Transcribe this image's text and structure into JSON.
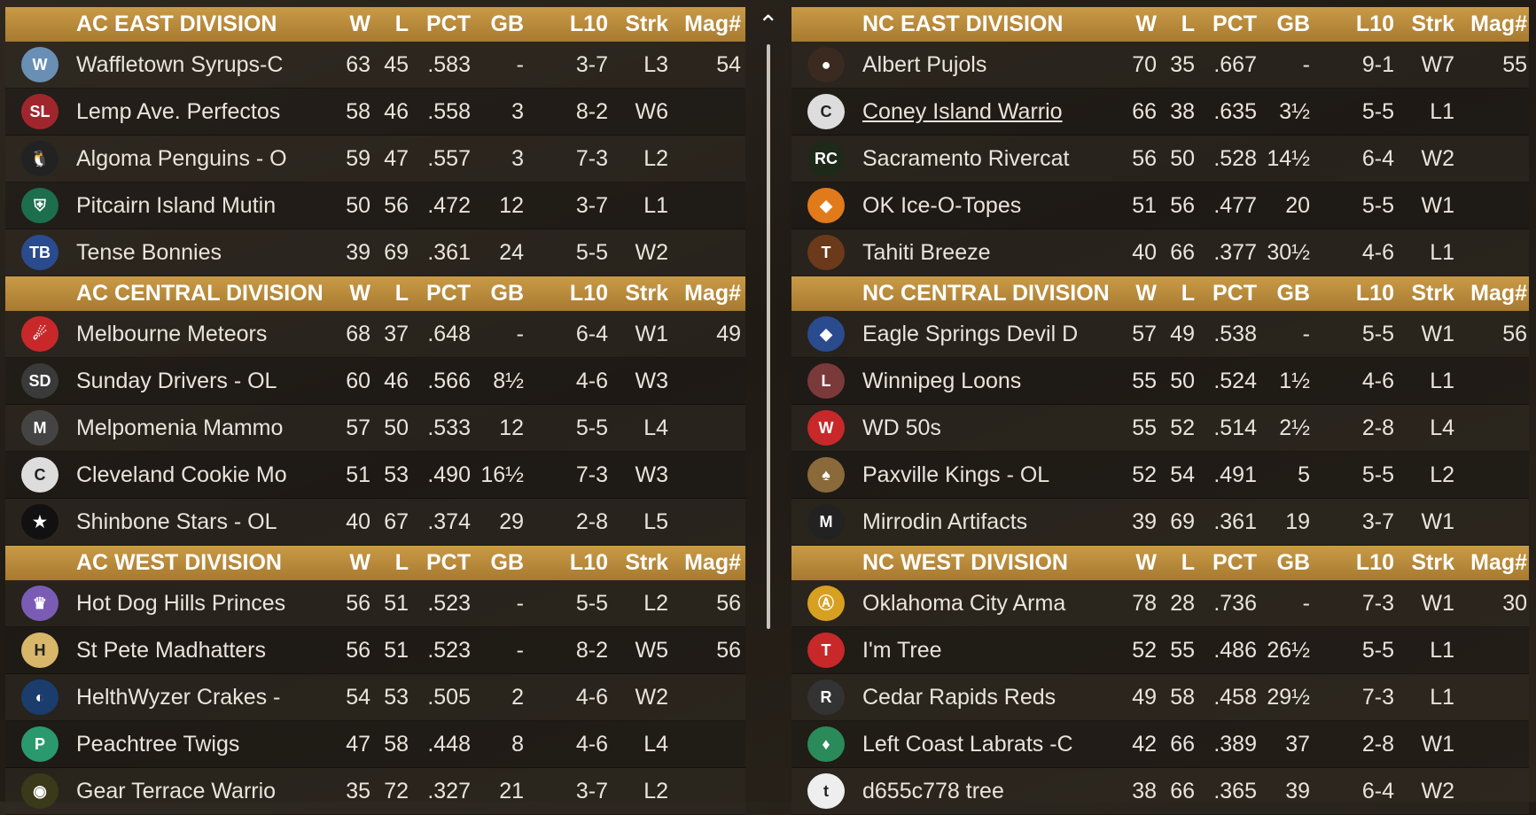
{
  "headers": {
    "w": "W",
    "l": "L",
    "pct": "PCT",
    "gb": "GB",
    "l10": "L10",
    "strk": "Strk",
    "mag": "Mag#"
  },
  "colors": {
    "header_gold": "#b88a3c",
    "row_dark": "#1e1a15",
    "text": "#e9e4dc"
  },
  "left_divisions": [
    {
      "title": "AC EAST DIVISION",
      "teams": [
        {
          "name": "Waffletown Syrups-C",
          "w": "63",
          "l": "45",
          "pct": ".583",
          "gb": "-",
          "l10": "3-7",
          "strk": "L3",
          "mag": "54",
          "logo": "waffle-logo-icon"
        },
        {
          "name": "Lemp Ave. Perfectos",
          "w": "58",
          "l": "46",
          "pct": ".558",
          "gb": "3",
          "l10": "8-2",
          "strk": "W6",
          "mag": "",
          "logo": "sl-monogram-icon"
        },
        {
          "name": "Algoma Penguins - O",
          "w": "59",
          "l": "47",
          "pct": ".557",
          "gb": "3",
          "l10": "7-3",
          "strk": "L2",
          "mag": "",
          "logo": "penguin-icon"
        },
        {
          "name": "Pitcairn Island Mutin",
          "w": "50",
          "l": "56",
          "pct": ".472",
          "gb": "12",
          "l10": "3-7",
          "strk": "L1",
          "mag": "",
          "logo": "shield-icon"
        },
        {
          "name": "Tense Bonnies",
          "w": "39",
          "l": "69",
          "pct": ".361",
          "gb": "24",
          "l10": "5-5",
          "strk": "W2",
          "mag": "",
          "logo": "wordmark-icon"
        }
      ]
    },
    {
      "title": "AC CENTRAL DIVISION",
      "teams": [
        {
          "name": "Melbourne Meteors",
          "w": "68",
          "l": "37",
          "pct": ".648",
          "gb": "-",
          "l10": "6-4",
          "strk": "W1",
          "mag": "49",
          "logo": "meteor-icon"
        },
        {
          "name": "Sunday Drivers - OL",
          "w": "60",
          "l": "46",
          "pct": ".566",
          "gb": "8½",
          "l10": "4-6",
          "strk": "W3",
          "mag": "",
          "logo": "sd-monogram-icon"
        },
        {
          "name": "Melpomenia Mammo",
          "w": "57",
          "l": "50",
          "pct": ".533",
          "gb": "12",
          "l10": "5-5",
          "strk": "L4",
          "mag": "",
          "logo": "mammoth-icon"
        },
        {
          "name": "Cleveland Cookie Mo",
          "w": "51",
          "l": "53",
          "pct": ".490",
          "gb": "16½",
          "l10": "7-3",
          "strk": "W3",
          "mag": "",
          "logo": "c-diamond-icon"
        },
        {
          "name": "Shinbone Stars - OL",
          "w": "40",
          "l": "67",
          "pct": ".374",
          "gb": "29",
          "l10": "2-8",
          "strk": "L5",
          "mag": "",
          "logo": "stars-ball-icon"
        }
      ]
    },
    {
      "title": "AC WEST DIVISION",
      "teams": [
        {
          "name": "Hot Dog Hills Princes",
          "w": "56",
          "l": "51",
          "pct": ".523",
          "gb": "-",
          "l10": "5-5",
          "strk": "L2",
          "mag": "56",
          "logo": "princess-icon"
        },
        {
          "name": "St Pete Madhatters",
          "w": "56",
          "l": "51",
          "pct": ".523",
          "gb": "-",
          "l10": "8-2",
          "strk": "W5",
          "mag": "56",
          "logo": "h-circle-icon"
        },
        {
          "name": "HelthWyzer Crakes -",
          "w": "54",
          "l": "53",
          "pct": ".505",
          "gb": "2",
          "l10": "4-6",
          "strk": "W2",
          "mag": "",
          "logo": "bird-icon"
        },
        {
          "name": "Peachtree Twigs",
          "w": "47",
          "l": "58",
          "pct": ".448",
          "gb": "8",
          "l10": "4-6",
          "strk": "L4",
          "mag": "",
          "logo": "p-square-icon"
        },
        {
          "name": "Gear Terrace Warrio",
          "w": "35",
          "l": "72",
          "pct": ".327",
          "gb": "21",
          "l10": "3-7",
          "strk": "L2",
          "mag": "",
          "logo": "owl-icon"
        }
      ]
    }
  ],
  "right_divisions": [
    {
      "title": "NC EAST DIVISION",
      "teams": [
        {
          "name": "Albert Pujols",
          "w": "70",
          "l": "35",
          "pct": ".667",
          "gb": "-",
          "l10": "9-1",
          "strk": "W7",
          "mag": "55",
          "logo": "player-photo-icon"
        },
        {
          "name": "Coney Island Warrio",
          "w": "66",
          "l": "38",
          "pct": ".635",
          "gb": "3½",
          "l10": "5-5",
          "strk": "L1",
          "mag": "",
          "logo": "c-diamond-icon",
          "link": true
        },
        {
          "name": "Sacramento Rivercat",
          "w": "56",
          "l": "50",
          "pct": ".528",
          "gb": "14½",
          "l10": "6-4",
          "strk": "W2",
          "mag": "",
          "logo": "rc-script-icon"
        },
        {
          "name": "OK Ice-O-Topes",
          "w": "51",
          "l": "56",
          "pct": ".477",
          "gb": "20",
          "l10": "5-5",
          "strk": "W1",
          "mag": "",
          "logo": "fish-icon"
        },
        {
          "name": "Tahiti Breeze",
          "w": "40",
          "l": "66",
          "pct": ".377",
          "gb": "30½",
          "l10": "4-6",
          "strk": "L1",
          "mag": "",
          "logo": "t-diamond-icon"
        }
      ]
    },
    {
      "title": "NC CENTRAL DIVISION",
      "teams": [
        {
          "name": "Eagle Springs Devil D",
          "w": "57",
          "l": "49",
          "pct": ".538",
          "gb": "-",
          "l10": "5-5",
          "strk": "W1",
          "mag": "56",
          "logo": "devil-dog-icon"
        },
        {
          "name": "Winnipeg Loons",
          "w": "55",
          "l": "50",
          "pct": ".524",
          "gb": "1½",
          "l10": "4-6",
          "strk": "L1",
          "mag": "",
          "logo": "loons-wordmark-icon"
        },
        {
          "name": "WD 50s",
          "w": "55",
          "l": "52",
          "pct": ".514",
          "gb": "2½",
          "l10": "2-8",
          "strk": "L4",
          "mag": "",
          "logo": "w-diamond-icon"
        },
        {
          "name": "Paxville Kings - OL",
          "w": "52",
          "l": "54",
          "pct": ".491",
          "gb": "5",
          "l10": "5-5",
          "strk": "L2",
          "mag": "",
          "logo": "cards-icon"
        },
        {
          "name": "Mirrodin Artifacts",
          "w": "39",
          "l": "69",
          "pct": ".361",
          "gb": "19",
          "l10": "3-7",
          "strk": "W1",
          "mag": "",
          "logo": "m-diamond-icon"
        }
      ]
    },
    {
      "title": "NC WEST DIVISION",
      "teams": [
        {
          "name": "Oklahoma City Arma",
          "w": "78",
          "l": "28",
          "pct": ".736",
          "gb": "-",
          "l10": "7-3",
          "strk": "W1",
          "mag": "30",
          "logo": "armadillo-icon"
        },
        {
          "name": "I'm Tree",
          "w": "52",
          "l": "55",
          "pct": ".486",
          "gb": "26½",
          "l10": "5-5",
          "strk": "L1",
          "mag": "",
          "logo": "t-letter-icon"
        },
        {
          "name": "Cedar Rapids Reds",
          "w": "49",
          "l": "58",
          "pct": ".458",
          "gb": "29½",
          "l10": "7-3",
          "strk": "L1",
          "mag": "",
          "logo": "reds-oval-icon"
        },
        {
          "name": "Left Coast Labrats -C",
          "w": "42",
          "l": "66",
          "pct": ".389",
          "gb": "37",
          "l10": "2-8",
          "strk": "W1",
          "mag": "",
          "logo": "green-shield-icon"
        },
        {
          "name": "d655c778 tree",
          "w": "38",
          "l": "66",
          "pct": ".365",
          "gb": "39",
          "l10": "6-4",
          "strk": "W2",
          "mag": "",
          "logo": "t-circle-icon"
        }
      ]
    }
  ]
}
